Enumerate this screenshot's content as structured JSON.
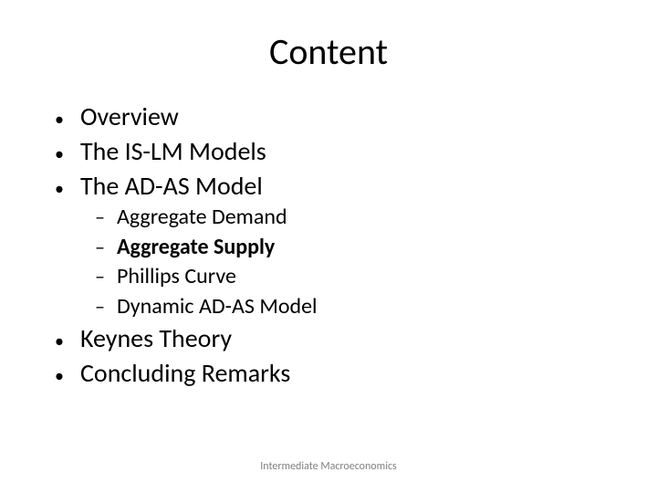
{
  "title": "Content",
  "bullets": {
    "l1a": "Overview",
    "l1b": "The IS-LM Models",
    "l1c": "The AD-AS Model",
    "l2a": "Aggregate Demand",
    "l2b": "Aggregate Supply",
    "l2c": "Phillips Curve",
    "l2d": "Dynamic AD-AS Model",
    "l1d": "Keynes Theory",
    "l1e": "Concluding Remarks"
  },
  "markers": {
    "level1": "•",
    "level2": "–"
  },
  "footer": "Intermediate Macroeconomics",
  "style": {
    "title_fontsize": 40,
    "l1_fontsize": 28,
    "l2_fontsize": 24,
    "footer_fontsize": 12,
    "text_color": "#000000",
    "footer_color": "#808080",
    "background_color": "#ffffff",
    "bold_item": "l2b"
  }
}
